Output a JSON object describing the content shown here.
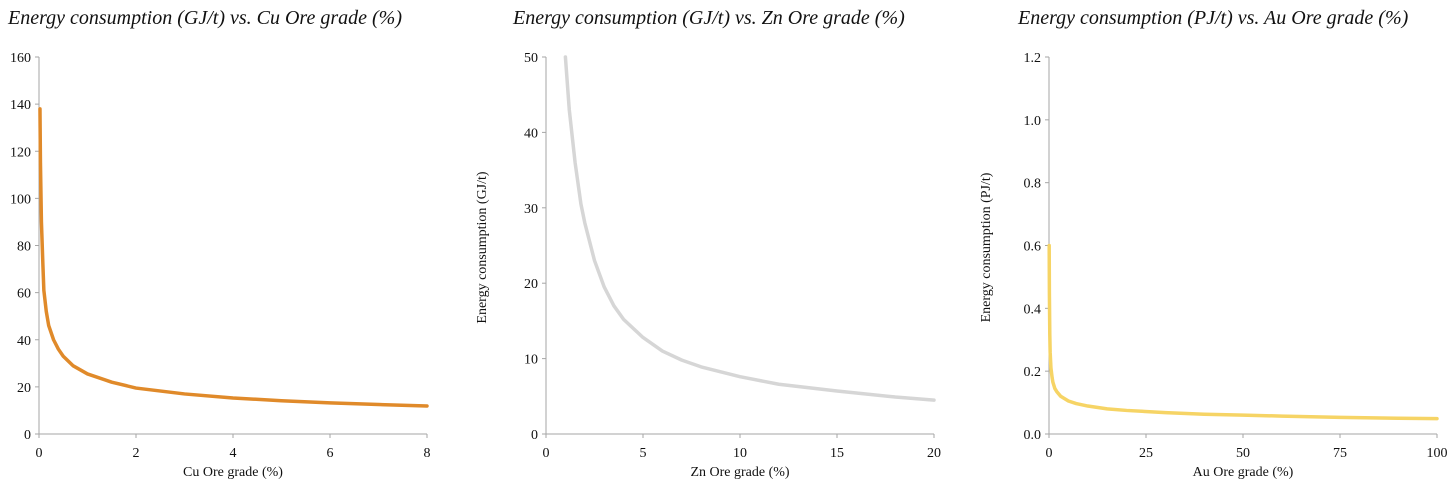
{
  "chart_data": [
    {
      "type": "line",
      "title": "Energy consumption (GJ/t) vs. Cu Ore grade (%)",
      "xlabel": "Cu Ore grade (%)",
      "ylabel": "",
      "xlim": [
        0,
        8
      ],
      "ylim": [
        0,
        160
      ],
      "xticks": [
        0,
        2,
        4,
        6,
        8
      ],
      "yticks": [
        0,
        20,
        40,
        60,
        80,
        100,
        120,
        140,
        160
      ],
      "xtick_labels": [
        "0",
        "2",
        "4",
        "6",
        "8"
      ],
      "ytick_labels": [
        "0",
        "20",
        "40",
        "60",
        "80",
        "100",
        "120",
        "140",
        "160"
      ],
      "grid": false,
      "color": "#e08a2a",
      "series": [
        {
          "x": [
            0.02,
            0.03,
            0.05,
            0.08,
            0.1,
            0.15,
            0.2,
            0.3,
            0.4,
            0.5,
            0.7,
            1.0,
            1.5,
            2.0,
            3.0,
            4.0,
            5.0,
            6.0,
            7.0,
            8.0
          ],
          "y": [
            138,
            115,
            90,
            72,
            61,
            52,
            46,
            40,
            36,
            33,
            29,
            25.5,
            22,
            19.5,
            17,
            15.3,
            14.1,
            13.2,
            12.5,
            11.9
          ]
        }
      ]
    },
    {
      "type": "line",
      "title": "Energy consumption (GJ/t) vs. Zn Ore grade (%)",
      "xlabel": "Zn Ore grade (%)",
      "ylabel": "Energy consumption (GJ/t)",
      "xlim": [
        0,
        20
      ],
      "ylim": [
        0,
        50
      ],
      "xticks": [
        0,
        5,
        10,
        15,
        20
      ],
      "yticks": [
        0,
        10,
        20,
        30,
        40,
        50
      ],
      "xtick_labels": [
        "0",
        "5",
        "10",
        "15",
        "20"
      ],
      "ytick_labels": [
        "0",
        "10",
        "20",
        "30",
        "40",
        "50"
      ],
      "grid": false,
      "color": "#d6d6d6",
      "series": [
        {
          "x": [
            1.0,
            1.2,
            1.5,
            1.8,
            2.0,
            2.5,
            3.0,
            3.5,
            4.0,
            5.0,
            6.0,
            7.0,
            8.0,
            10.0,
            12.0,
            15.0,
            18.0,
            20.0
          ],
          "y": [
            50,
            43,
            36,
            30.5,
            28,
            23,
            19.5,
            17,
            15.2,
            12.8,
            11.0,
            9.8,
            8.9,
            7.6,
            6.6,
            5.7,
            4.9,
            4.5
          ]
        }
      ]
    },
    {
      "type": "line",
      "title": "Energy consumption (PJ/t) vs. Au Ore grade (%)",
      "xlabel": "Au Ore grade (%)",
      "ylabel": "Energy consumption (PJ/t)",
      "xlim": [
        0,
        100
      ],
      "ylim": [
        0,
        1.2
      ],
      "xticks": [
        0,
        25,
        50,
        75,
        100
      ],
      "yticks": [
        0,
        0.2,
        0.4,
        0.6,
        0.8,
        1.0,
        1.2
      ],
      "xtick_labels": [
        "0",
        "25",
        "50",
        "75",
        "100"
      ],
      "ytick_labels": [
        "0.0",
        "0.2",
        "0.4",
        "0.6",
        "0.8",
        "1.0",
        "1.2"
      ],
      "grid": false,
      "color": "#f6d465",
      "series": [
        {
          "x": [
            0.05,
            0.1,
            0.2,
            0.3,
            0.5,
            0.8,
            1.0,
            1.5,
            2.0,
            3.0,
            5.0,
            7.0,
            10.0,
            15.0,
            20.0,
            30.0,
            40.0,
            50.0,
            60.0,
            75.0,
            90.0,
            100.0
          ],
          "y": [
            0.6,
            0.45,
            0.32,
            0.26,
            0.21,
            0.18,
            0.165,
            0.145,
            0.135,
            0.12,
            0.105,
            0.097,
            0.089,
            0.08,
            0.075,
            0.068,
            0.063,
            0.06,
            0.057,
            0.053,
            0.05,
            0.049
          ]
        }
      ]
    }
  ]
}
